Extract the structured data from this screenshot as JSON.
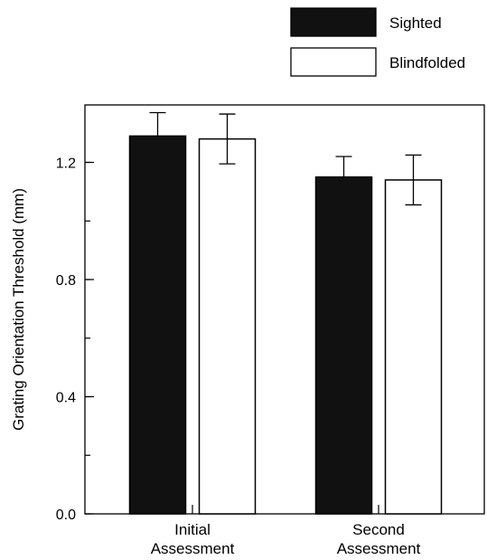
{
  "chart_data": {
    "type": "bar",
    "title": "",
    "xlabel": "",
    "ylabel": "Grating Orientation Threshold (mm)",
    "ylim": [
      0,
      1.4
    ],
    "yticks": [
      {
        "value": 0.0,
        "label": "0.0"
      },
      {
        "value": 0.4,
        "label": "0.4"
      },
      {
        "value": 0.8,
        "label": "0.8"
      },
      {
        "value": 1.2,
        "label": "1.2"
      }
    ],
    "yminor_step": 0.2,
    "categories": [
      {
        "lines": [
          "Initial",
          "Assessment"
        ]
      },
      {
        "lines": [
          "Second",
          "Assessment"
        ]
      }
    ],
    "series": [
      {
        "name": "Sighted",
        "fill": "#111111",
        "values": [
          1.29,
          1.15
        ],
        "error": [
          0.08,
          0.07
        ]
      },
      {
        "name": "Blindfolded",
        "fill": "#ffffff",
        "values": [
          1.28,
          1.14
        ],
        "error": [
          0.085,
          0.085
        ]
      }
    ],
    "legend_position": "top-right",
    "grid": false
  }
}
